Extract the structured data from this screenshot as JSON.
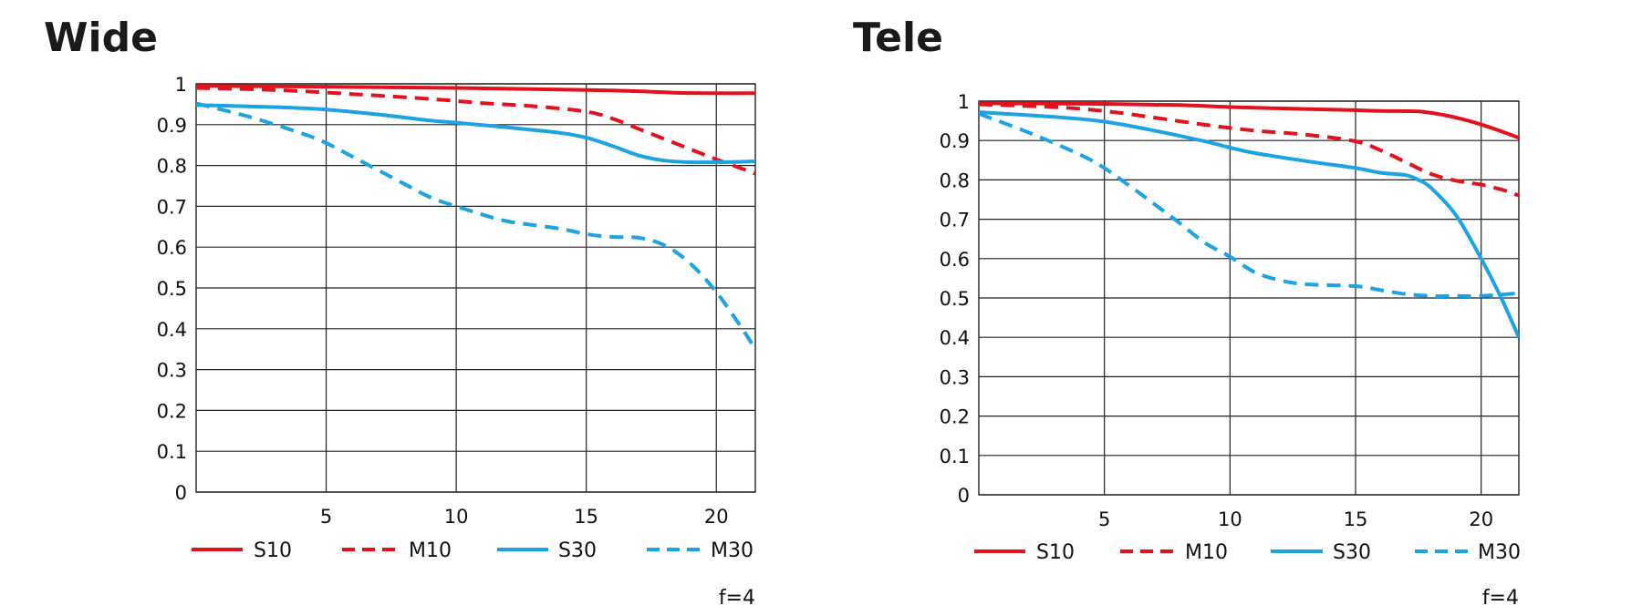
{
  "colors": {
    "red": "#e3111b",
    "blue": "#1ba3e3",
    "grid": "#222222",
    "text": "#111111"
  },
  "chart_data": [
    {
      "type": "line",
      "title": "Wide",
      "note": "f=4",
      "xlim": [
        0,
        21.5
      ],
      "ylim": [
        0,
        1
      ],
      "xticks": [
        "5",
        "10",
        "15",
        "20"
      ],
      "yticks": [
        "0",
        "0.1",
        "0.2",
        "0.3",
        "0.4",
        "0.5",
        "0.6",
        "0.7",
        "0.8",
        "0.9",
        "1"
      ],
      "grid": true,
      "legend_position": "bottom",
      "series": [
        {
          "name": "S10",
          "color": "#e3111b",
          "dashed": false,
          "points": [
            [
              0,
              0.995
            ],
            [
              5,
              0.993
            ],
            [
              10,
              0.99
            ],
            [
              15,
              0.985
            ],
            [
              17,
              0.982
            ],
            [
              18.5,
              0.978
            ],
            [
              20,
              0.977
            ],
            [
              21.5,
              0.977
            ]
          ]
        },
        {
          "name": "M10",
          "color": "#e3111b",
          "dashed": true,
          "points": [
            [
              0,
              0.99
            ],
            [
              3,
              0.985
            ],
            [
              6,
              0.975
            ],
            [
              9,
              0.963
            ],
            [
              11,
              0.953
            ],
            [
              13,
              0.945
            ],
            [
              15,
              0.932
            ],
            [
              16,
              0.915
            ],
            [
              17,
              0.89
            ],
            [
              18,
              0.865
            ],
            [
              19,
              0.84
            ],
            [
              20,
              0.815
            ],
            [
              21,
              0.792
            ],
            [
              21.5,
              0.78
            ]
          ]
        },
        {
          "name": "S30",
          "color": "#1ba3e3",
          "dashed": false,
          "points": [
            [
              0,
              0.948
            ],
            [
              3,
              0.943
            ],
            [
              5,
              0.937
            ],
            [
              7,
              0.925
            ],
            [
              9,
              0.91
            ],
            [
              10,
              0.905
            ],
            [
              12,
              0.893
            ],
            [
              14,
              0.88
            ],
            [
              15,
              0.868
            ],
            [
              16,
              0.848
            ],
            [
              17,
              0.825
            ],
            [
              18,
              0.812
            ],
            [
              19,
              0.808
            ],
            [
              20,
              0.808
            ],
            [
              21.5,
              0.81
            ]
          ]
        },
        {
          "name": "M30",
          "color": "#1ba3e3",
          "dashed": true,
          "points": [
            [
              0,
              0.952
            ],
            [
              2,
              0.92
            ],
            [
              4,
              0.88
            ],
            [
              5,
              0.855
            ],
            [
              6,
              0.822
            ],
            [
              8,
              0.755
            ],
            [
              9,
              0.722
            ],
            [
              10,
              0.7
            ],
            [
              11,
              0.68
            ],
            [
              12,
              0.663
            ],
            [
              14,
              0.645
            ],
            [
              15,
              0.632
            ],
            [
              16,
              0.625
            ],
            [
              17,
              0.623
            ],
            [
              18,
              0.605
            ],
            [
              19,
              0.56
            ],
            [
              20,
              0.49
            ],
            [
              21,
              0.4
            ],
            [
              21.5,
              0.35
            ]
          ]
        }
      ]
    },
    {
      "type": "line",
      "title": "Tele",
      "note": "f=4",
      "xlim": [
        0,
        21.5
      ],
      "ylim": [
        0,
        1
      ],
      "xticks": [
        "5",
        "10",
        "15",
        "20"
      ],
      "yticks": [
        "0",
        "0.1",
        "0.2",
        "0.3",
        "0.4",
        "0.5",
        "0.6",
        "0.7",
        "0.8",
        "0.9",
        "1"
      ],
      "grid": true,
      "legend_position": "bottom",
      "series": [
        {
          "name": "S10",
          "color": "#e3111b",
          "dashed": false,
          "points": [
            [
              0,
              0.995
            ],
            [
              5,
              0.993
            ],
            [
              8,
              0.99
            ],
            [
              10,
              0.985
            ],
            [
              13,
              0.98
            ],
            [
              15,
              0.977
            ],
            [
              16,
              0.975
            ],
            [
              17.5,
              0.974
            ],
            [
              18.5,
              0.965
            ],
            [
              19.5,
              0.95
            ],
            [
              20.5,
              0.93
            ],
            [
              21.5,
              0.907
            ]
          ]
        },
        {
          "name": "M10",
          "color": "#e3111b",
          "dashed": true,
          "points": [
            [
              0,
              0.992
            ],
            [
              3,
              0.985
            ],
            [
              5,
              0.975
            ],
            [
              7,
              0.958
            ],
            [
              9,
              0.94
            ],
            [
              11,
              0.925
            ],
            [
              13,
              0.915
            ],
            [
              15,
              0.898
            ],
            [
              16,
              0.875
            ],
            [
              17,
              0.845
            ],
            [
              18,
              0.815
            ],
            [
              19,
              0.798
            ],
            [
              20,
              0.788
            ],
            [
              21,
              0.772
            ],
            [
              21.5,
              0.76
            ]
          ]
        },
        {
          "name": "S30",
          "color": "#1ba3e3",
          "dashed": false,
          "points": [
            [
              0,
              0.972
            ],
            [
              3,
              0.96
            ],
            [
              5,
              0.948
            ],
            [
              7,
              0.925
            ],
            [
              9,
              0.898
            ],
            [
              10,
              0.882
            ],
            [
              11,
              0.868
            ],
            [
              13,
              0.848
            ],
            [
              15,
              0.83
            ],
            [
              16,
              0.818
            ],
            [
              17,
              0.812
            ],
            [
              17.5,
              0.8
            ],
            [
              18,
              0.78
            ],
            [
              19,
              0.71
            ],
            [
              20,
              0.6
            ],
            [
              20.8,
              0.5
            ],
            [
              21.5,
              0.4
            ]
          ]
        },
        {
          "name": "M30",
          "color": "#1ba3e3",
          "dashed": true,
          "points": [
            [
              0,
              0.968
            ],
            [
              2,
              0.92
            ],
            [
              4,
              0.865
            ],
            [
              5,
              0.83
            ],
            [
              6,
              0.785
            ],
            [
              7,
              0.738
            ],
            [
              8,
              0.69
            ],
            [
              9,
              0.64
            ],
            [
              10,
              0.605
            ],
            [
              11,
              0.565
            ],
            [
              12,
              0.545
            ],
            [
              13,
              0.535
            ],
            [
              15,
              0.53
            ],
            [
              16,
              0.52
            ],
            [
              17,
              0.51
            ],
            [
              18,
              0.505
            ],
            [
              19,
              0.505
            ],
            [
              20,
              0.505
            ],
            [
              21.5,
              0.512
            ]
          ]
        }
      ]
    }
  ]
}
